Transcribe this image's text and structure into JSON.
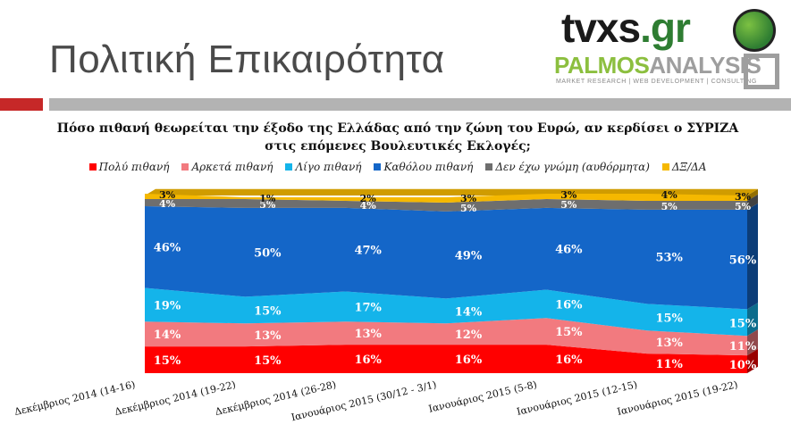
{
  "page": {
    "title": "Πολιτική Επικαιρότητα",
    "logo_main": "tvxs",
    "logo_dot": ".gr",
    "logo_palmos_green": "PALMOS",
    "logo_palmos_gray": "ANALYSIS",
    "logo_palmos_sub": "MARKET RESEARCH | WEB DEVELOPMENT | CONSULTING"
  },
  "chart_data": {
    "type": "area",
    "stacked": true,
    "percent": true,
    "title": "Πόσο πιθανή θεωρείται την έξοδο της Ελλάδας από την ζώνη του Ευρώ, αν κερδίσει ο ΣΥΡΙΖΑ στις επόμενες Βουλευτικές Εκλογές;",
    "categories": [
      "Δεκέμβριος 2014 (14-16)",
      "Δεκέμβριος 2014 (19-22)",
      "Δεκέμβριος 2014 (26-28)",
      "Ιανουάριος 2015 (30/12 - 3/1)",
      "Ιανουάριος 2015 (5-8)",
      "Ιανουάριος 2015 (12-15)",
      "Ιανουάριος 2015 (19-22)"
    ],
    "series": [
      {
        "name": "Πολύ πιθανή",
        "color": "#ff0000",
        "values": [
          15,
          15,
          16,
          16,
          16,
          11,
          10
        ]
      },
      {
        "name": "Αρκετά πιθανή",
        "color": "#f27a7f",
        "values": [
          14,
          13,
          13,
          12,
          15,
          13,
          11
        ]
      },
      {
        "name": "Λίγο πιθανή",
        "color": "#14b4ea",
        "values": [
          19,
          15,
          17,
          14,
          16,
          15,
          15
        ]
      },
      {
        "name": "Καθόλου πιθανή",
        "color": "#1466c8",
        "values": [
          46,
          50,
          47,
          49,
          46,
          53,
          56
        ]
      },
      {
        "name": "Δεν έχω γνώμη (αυθόρμητα)",
        "color": "#6e6e6e",
        "values": [
          4,
          5,
          4,
          5,
          5,
          5,
          5
        ]
      },
      {
        "name": "ΔΞ/ΔΑ",
        "color": "#f5b800",
        "values": [
          3,
          1,
          2,
          3,
          3,
          4,
          3
        ]
      }
    ],
    "ylim": [
      0,
      100
    ],
    "legend_position": "top",
    "grid": false
  }
}
